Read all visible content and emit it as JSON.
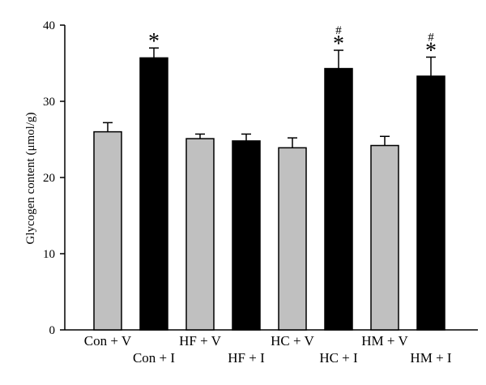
{
  "chart_data": {
    "type": "bar",
    "title": "",
    "xlabel": "",
    "ylabel": "Glycogen content (μmol/g)",
    "ylim": [
      0,
      40
    ],
    "yticks": [
      0,
      10,
      20,
      30,
      40
    ],
    "grid": false,
    "legend": "none",
    "categories": [
      "Con + V",
      "Con + I",
      "HF + V",
      "HF + I",
      "HC + V",
      "HC + I",
      "HM + V",
      "HM + I"
    ],
    "values": [
      26.0,
      35.7,
      25.1,
      24.8,
      23.9,
      34.3,
      24.2,
      33.3
    ],
    "errors": [
      1.2,
      1.3,
      0.6,
      0.9,
      1.3,
      2.4,
      1.2,
      2.5
    ],
    "annotations": [
      "",
      "*",
      "",
      "",
      "",
      "*#",
      "",
      "*#"
    ],
    "colors": {
      "vehicle": "#c0c0c0",
      "insulin": "#000000"
    }
  }
}
